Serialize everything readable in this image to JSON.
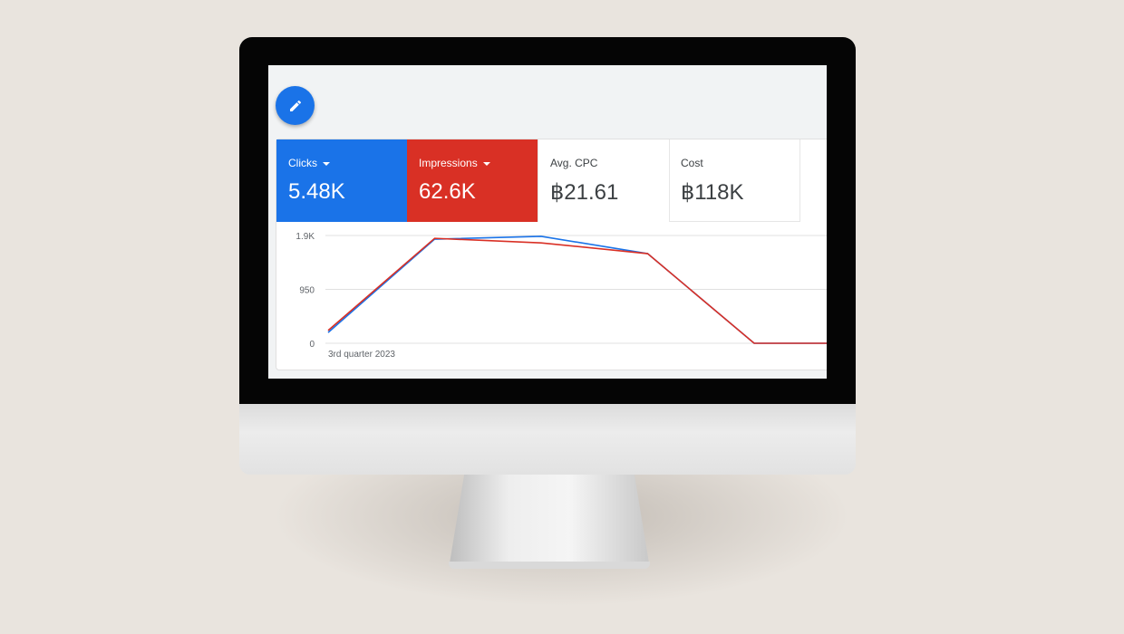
{
  "metrics": [
    {
      "label": "Clicks",
      "value": "5.48K",
      "color": "#1a73e8",
      "dropdown": true
    },
    {
      "label": "Impressions",
      "value": "62.6K",
      "color": "#d93025",
      "dropdown": true
    },
    {
      "label": "Avg. CPC",
      "value": "฿21.61"
    },
    {
      "label": "Cost",
      "value": "฿118K"
    }
  ],
  "fab_icon": "pencil-icon",
  "chart_data": {
    "type": "line",
    "x_label_first": "3rd quarter 2023",
    "yticks": [
      "0",
      "950",
      "1.9K"
    ],
    "ylim": [
      0,
      1900
    ],
    "grid": true,
    "series": [
      {
        "color": "#1a73e8",
        "values": [
          190,
          1835,
          1885,
          1580,
          0,
          0
        ]
      },
      {
        "color": "#d93025",
        "values": [
          225,
          1850,
          1770,
          1580,
          0,
          0
        ]
      }
    ]
  }
}
